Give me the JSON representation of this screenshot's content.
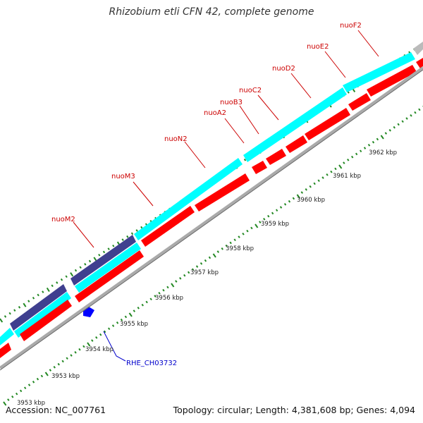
{
  "title": "Rhizobium etli CFN 42, complete genome",
  "footer": {
    "accession": "Accession: NC_007761",
    "summary": "Topology: circular; Length: 4,381,608 bp; Genes: 4,094"
  },
  "colors": {
    "label_red": "#cc0000",
    "label_blue": "#0000cc",
    "cds_red": "#ff0000",
    "cds_cyan": "#00ffff",
    "cds_navy": "#3f3f8f",
    "backbone_gray": "#999999",
    "tick_green": "#228822"
  },
  "ruler": {
    "unit": "kbp",
    "labels": [
      "3953 kbp",
      "3954 kbp",
      "3955 kbp",
      "3956 kbp",
      "3957 kbp",
      "3958 kbp",
      "3959 kbp",
      "3960 kbp",
      "3961 kbp",
      "3962 kbp"
    ]
  },
  "gene_labels": [
    {
      "name": "nuoM2",
      "color": "red"
    },
    {
      "name": "nuoM3",
      "color": "red"
    },
    {
      "name": "nuoN2",
      "color": "red"
    },
    {
      "name": "nuoA2",
      "color": "red"
    },
    {
      "name": "nuoB3",
      "color": "red"
    },
    {
      "name": "nuoC2",
      "color": "red"
    },
    {
      "name": "nuoD2",
      "color": "red"
    },
    {
      "name": "nuoE2",
      "color": "red"
    },
    {
      "name": "nuoF2",
      "color": "red"
    },
    {
      "name": "RHE_CH03732",
      "color": "blue"
    }
  ]
}
